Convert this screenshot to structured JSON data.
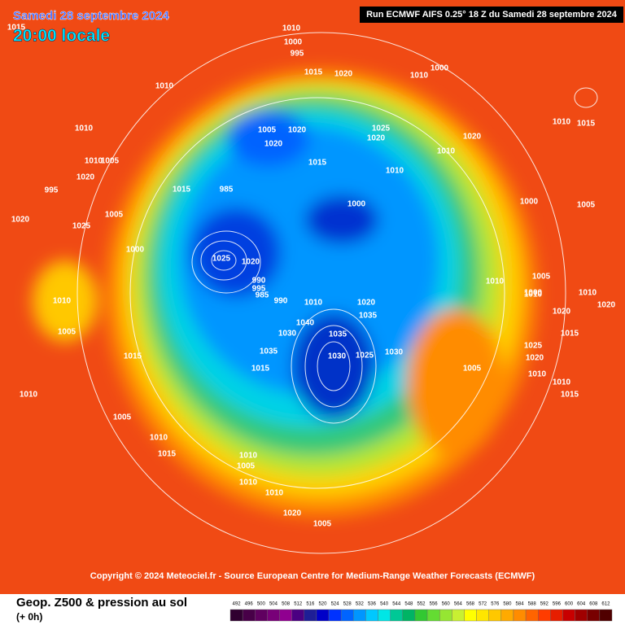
{
  "header": {
    "date": "Samedi 28 septembre 2024",
    "time": "20:00 locale",
    "run": "Run ECMWF AIFS 0.25° 18 Z du Samedi 28 septembre 2024"
  },
  "copyright": "Copyright © 2024 Meteociel.fr - Source European Centre for Medium-Range Weather Forecasts (ECMWF)",
  "footer": {
    "title": "Geop. Z500 & pression au sol",
    "step": "(+ 0h)"
  },
  "scale": {
    "values": [
      492,
      496,
      500,
      504,
      508,
      512,
      516,
      520,
      524,
      528,
      532,
      536,
      540,
      544,
      548,
      552,
      556,
      560,
      564,
      568,
      572,
      576,
      580,
      584,
      588,
      592,
      596,
      600,
      604,
      608,
      612
    ],
    "colors": [
      "#300030",
      "#480048",
      "#600060",
      "#780078",
      "#900090",
      "#4b0082",
      "#1e1e96",
      "#0000c8",
      "#0032ff",
      "#0064ff",
      "#0096ff",
      "#00c8ff",
      "#00e6e6",
      "#00c896",
      "#00b464",
      "#32c832",
      "#64dc32",
      "#96e632",
      "#c8f032",
      "#ffff00",
      "#ffe600",
      "#ffc800",
      "#ffaa00",
      "#ff8c00",
      "#ff6400",
      "#ff3c00",
      "#e61e00",
      "#c80000",
      "#a00000",
      "#780000",
      "#500000"
    ]
  },
  "isobars": [
    "1015",
    "1010",
    "1000",
    "995",
    "1015",
    "1020",
    "1010",
    "1020",
    "1005",
    "1010",
    "1010",
    "1000",
    "1005",
    "1020",
    "1020",
    "1025",
    "1020",
    "1015",
    "1010",
    "1010",
    "1020",
    "1010",
    "1015",
    "1010",
    "1005",
    "1020",
    "1015",
    "985",
    "995",
    "1000",
    "1000",
    "1005",
    "1020",
    "1025",
    "1005",
    "1000",
    "1025",
    "1020",
    "990",
    "995",
    "985",
    "990",
    "1010",
    "1020",
    "1035",
    "1030",
    "1040",
    "1035",
    "1030",
    "1025",
    "1030",
    "1035",
    "1015",
    "1005",
    "1010",
    "1010",
    "1005",
    "1000",
    "1020",
    "1015",
    "1010",
    "1020",
    "1025",
    "1020",
    "1010",
    "1010",
    "1015",
    "1010",
    "1005",
    "1015",
    "1010",
    "1005",
    "1010",
    "1015",
    "1010",
    "1005",
    "1010",
    "1010"
  ]
}
